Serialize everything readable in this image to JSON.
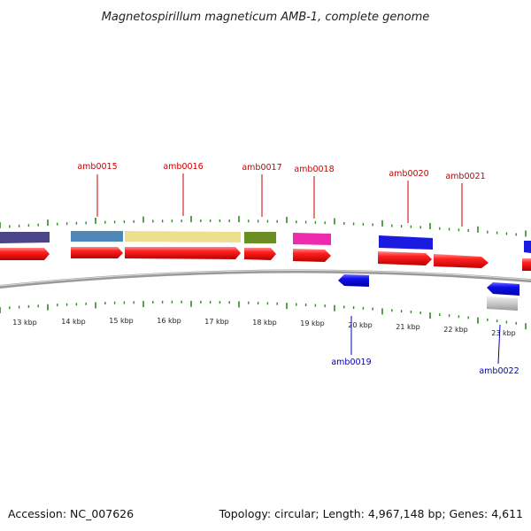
{
  "title": "Magnetospirillum magneticum AMB-1, complete genome",
  "footer": {
    "accession": "Accession: NC_007626",
    "topology": "Topology: circular; Length: 4,967,148 bp; Genes: 4,611"
  },
  "colors": {
    "forward_label": "#cc0000",
    "reverse_label": "#0000bb",
    "cds_arrow": "#ee1111",
    "tick_green": "#2e8b22",
    "backbone": "#888888"
  },
  "ruler": [
    "13 kbp",
    "14 kbp",
    "15 kbp",
    "16 kbp",
    "17 kbp",
    "18 kbp",
    "19 kbp",
    "20 kbp",
    "21 kbp",
    "22 kbp",
    "23 kbp"
  ],
  "labels": {
    "forward": [
      "amb0015",
      "amb0016",
      "amb0017",
      "amb0018",
      "amb0020",
      "amb0021"
    ],
    "reverse": [
      "amb0019",
      "amb0022"
    ]
  }
}
